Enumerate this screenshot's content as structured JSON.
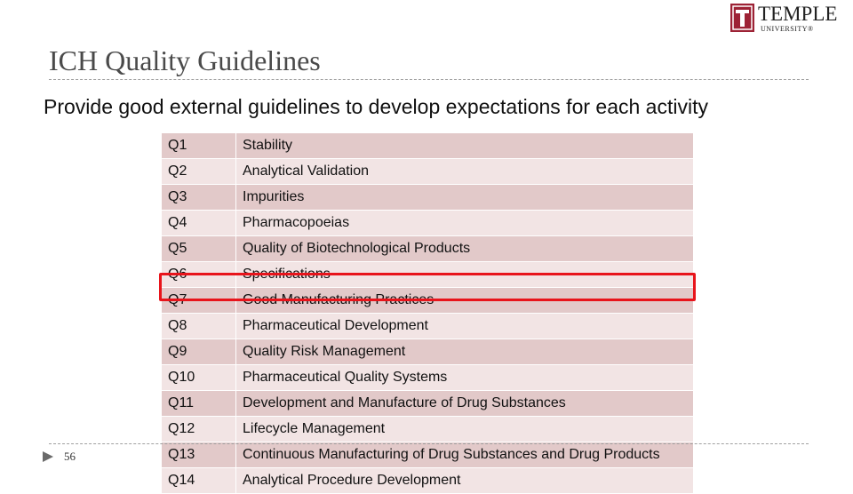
{
  "logo": {
    "name": "TEMPLE",
    "sub": "UNIVERSITY®"
  },
  "title": "ICH Quality Guidelines",
  "subtitle": "Provide good external guidelines to develop expectations for each activity",
  "table": {
    "rows": [
      [
        "Q1",
        "Stability"
      ],
      [
        "Q2",
        "Analytical Validation"
      ],
      [
        "Q3",
        "Impurities"
      ],
      [
        "Q4",
        "Pharmacopoeias"
      ],
      [
        "Q5",
        "Quality of Biotechnological Products"
      ],
      [
        "Q6",
        "Specifications"
      ],
      [
        "Q7",
        "Good Manufacturing Practices"
      ],
      [
        "Q8",
        "Pharmaceutical Development"
      ],
      [
        "Q9",
        "Quality Risk Management"
      ],
      [
        "Q10",
        "Pharmaceutical Quality Systems"
      ],
      [
        "Q11",
        "Development and Manufacture of Drug Substances"
      ],
      [
        "Q12",
        "Lifecycle Management"
      ],
      [
        "Q13",
        "Continuous Manufacturing of Drug Substances and Drug Products"
      ],
      [
        "Q14",
        "Analytical Procedure Development"
      ]
    ]
  },
  "footer": {
    "page": "56"
  }
}
